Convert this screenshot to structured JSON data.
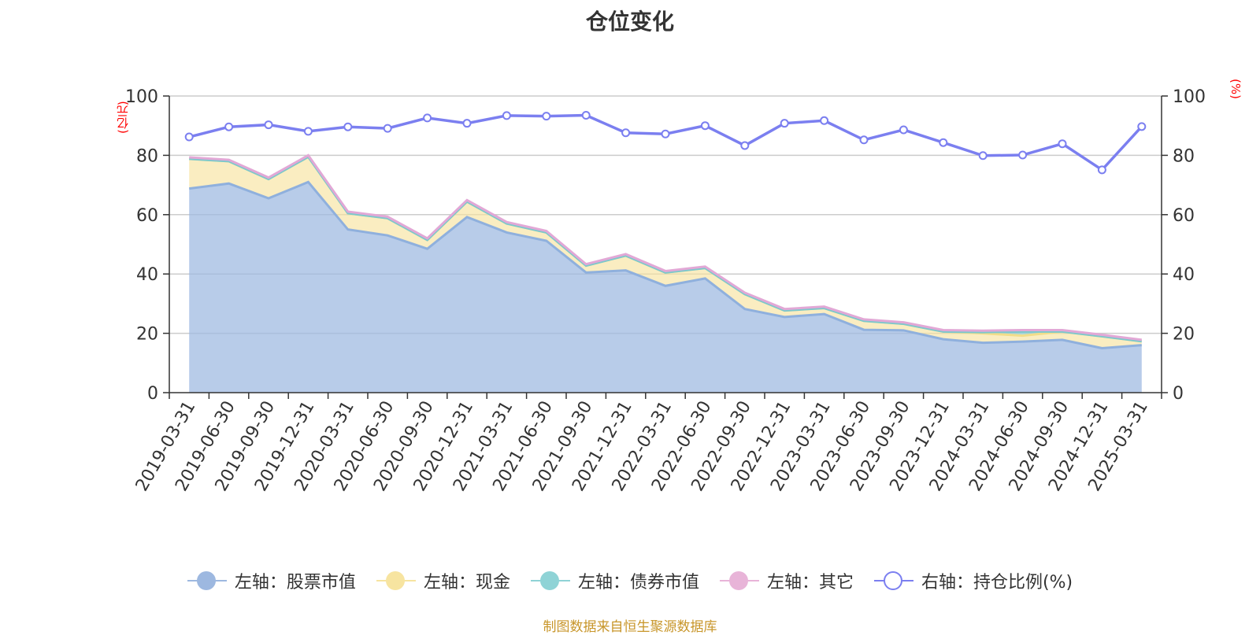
{
  "title": "仓位变化",
  "left_unit": "(亿元)",
  "right_unit": "(%)",
  "source": "制图数据来自恒生聚源数据库",
  "colors": {
    "stock": "#9db8e0",
    "cash": "#f7e4a0",
    "bond": "#8fd3d6",
    "other": "#e8b4d8",
    "ratio": "#7b7ff0",
    "grid": "#cccccc",
    "axis": "#333333"
  },
  "legend": [
    {
      "label": "左轴：股票市值",
      "color": "#9db8e0",
      "hollow": false
    },
    {
      "label": "左轴：现金",
      "color": "#f7e4a0",
      "hollow": false
    },
    {
      "label": "左轴：债券市值",
      "color": "#8fd3d6",
      "hollow": false
    },
    {
      "label": "左轴：其它",
      "color": "#e8b4d8",
      "hollow": false
    },
    {
      "label": "右轴：持仓比例(%)",
      "color": "#7b7ff0",
      "hollow": true
    }
  ],
  "chart_data": {
    "type": "area",
    "x": [
      "2019-03-31",
      "2019-06-30",
      "2019-09-30",
      "2019-12-31",
      "2020-03-31",
      "2020-06-30",
      "2020-09-30",
      "2020-12-31",
      "2021-03-31",
      "2021-06-30",
      "2021-09-30",
      "2021-12-31",
      "2022-03-31",
      "2022-06-30",
      "2022-09-30",
      "2022-12-31",
      "2023-03-31",
      "2023-06-30",
      "2023-09-30",
      "2023-12-31",
      "2024-03-31",
      "2024-06-30",
      "2024-09-30",
      "2024-12-31",
      "2025-03-31"
    ],
    "left_axis": {
      "ylim": [
        0,
        100
      ],
      "ticks": [
        0,
        20,
        40,
        60,
        80,
        100
      ]
    },
    "right_axis": {
      "ylim": [
        0,
        100
      ],
      "ticks": [
        0,
        20,
        40,
        60,
        80,
        100
      ]
    },
    "series": [
      {
        "name": "左轴：股票市值",
        "axis": "left",
        "stack": true,
        "values": [
          68.8,
          70.5,
          65.5,
          71.0,
          55.0,
          53.0,
          48.5,
          59.2,
          54.0,
          51.2,
          40.5,
          41.2,
          36.0,
          38.5,
          28.2,
          25.5,
          26.5,
          21.2,
          21.0,
          18.0,
          16.8,
          17.2,
          17.8,
          15.0,
          16.0
        ]
      },
      {
        "name": "左轴：现金",
        "axis": "left",
        "stack": true,
        "values": [
          10.0,
          7.5,
          6.5,
          8.5,
          5.5,
          5.8,
          3.0,
          5.2,
          3.0,
          2.8,
          2.3,
          5.0,
          4.5,
          3.5,
          5.0,
          2.2,
          2.0,
          3.0,
          2.2,
          2.6,
          3.2,
          2.0,
          2.8,
          4.0,
          1.3
        ]
      },
      {
        "name": "左轴：债券市值",
        "axis": "left",
        "stack": true,
        "values": [
          0,
          0,
          0,
          0,
          0,
          0,
          0,
          0,
          0,
          0,
          0,
          0,
          0,
          0,
          0,
          0,
          0,
          0,
          0,
          0,
          0.4,
          1.4,
          0,
          0,
          0
        ]
      },
      {
        "name": "左轴：其它",
        "axis": "left",
        "stack": true,
        "values": [
          0.5,
          0.5,
          0.5,
          0.5,
          0.5,
          0.5,
          0.5,
          0.5,
          0.5,
          0.5,
          0.5,
          0.5,
          0.5,
          0.5,
          0.5,
          0.5,
          0.5,
          0.5,
          0.5,
          0.5,
          0.5,
          0.5,
          0.5,
          0.5,
          0.5
        ]
      },
      {
        "name": "右轴：持仓比例(%)",
        "axis": "right",
        "type": "line",
        "values": [
          86.2,
          89.6,
          90.3,
          88.1,
          89.6,
          89.1,
          92.6,
          90.8,
          93.4,
          93.2,
          93.5,
          87.6,
          87.2,
          90.0,
          83.3,
          90.8,
          91.7,
          85.2,
          88.6,
          84.3,
          79.9,
          80.1,
          83.9,
          75.1,
          89.7
        ]
      }
    ]
  }
}
